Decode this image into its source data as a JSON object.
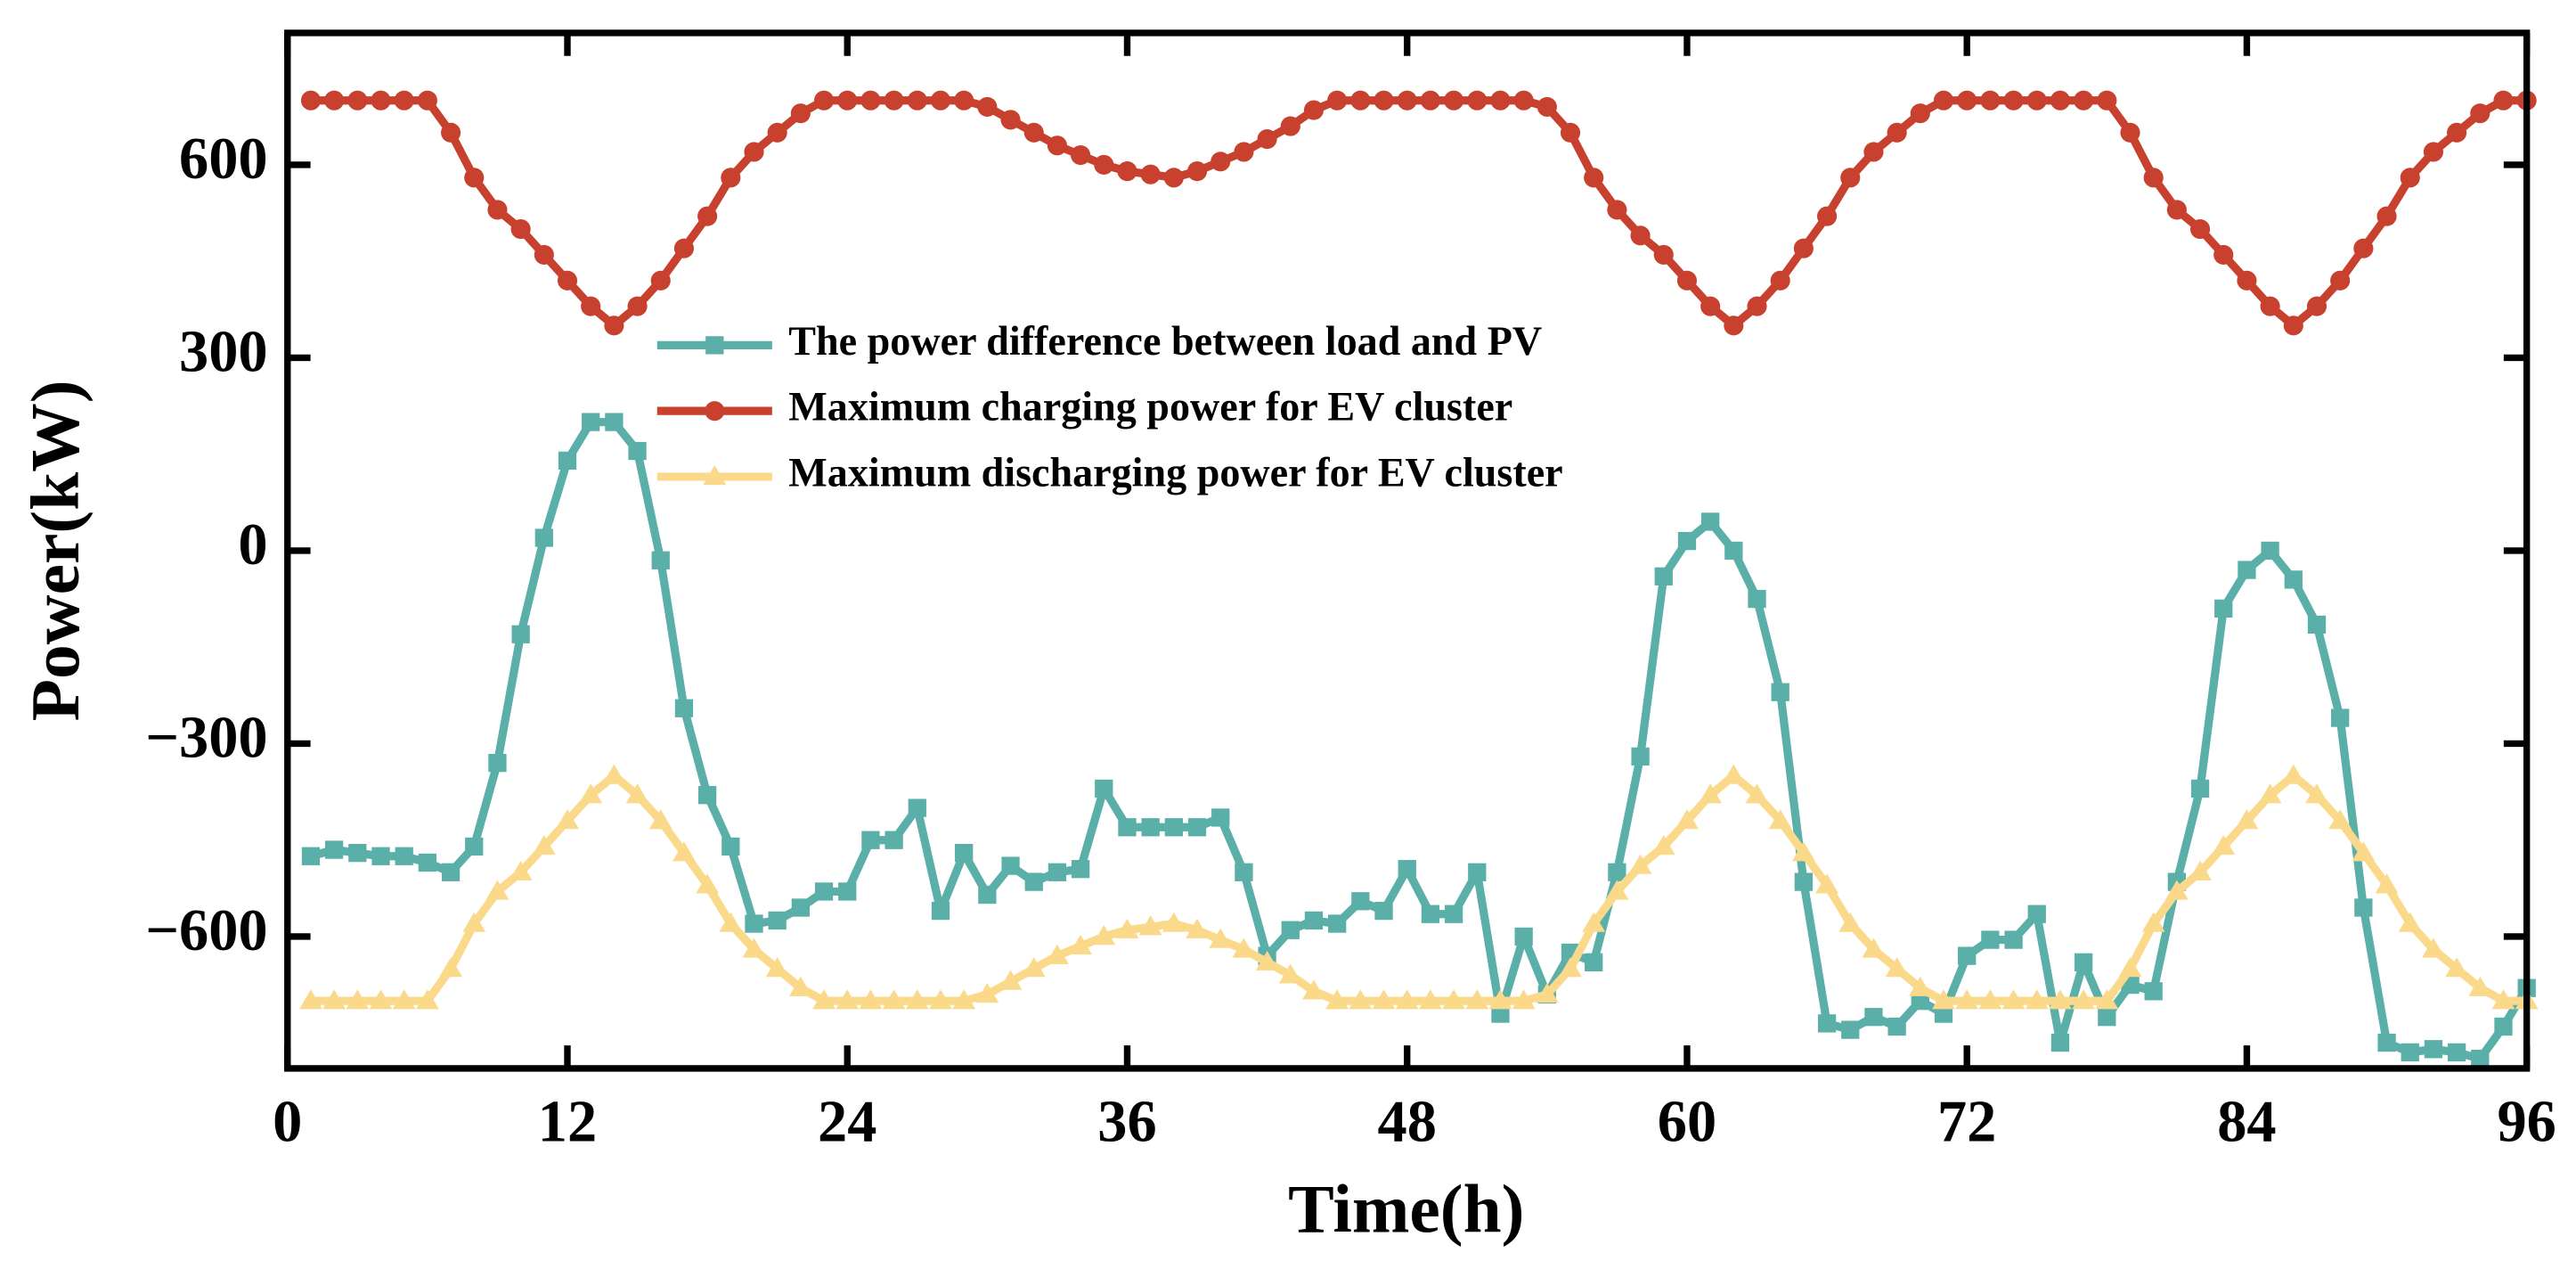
{
  "chart_data": {
    "type": "line",
    "xlabel": "Time(h)",
    "ylabel": "Power(kW)",
    "x": [
      1,
      2,
      3,
      4,
      5,
      6,
      7,
      8,
      9,
      10,
      11,
      12,
      13,
      14,
      15,
      16,
      17,
      18,
      19,
      20,
      21,
      22,
      23,
      24,
      25,
      26,
      27,
      28,
      29,
      30,
      31,
      32,
      33,
      34,
      35,
      36,
      37,
      38,
      39,
      40,
      41,
      42,
      43,
      44,
      45,
      46,
      47,
      48,
      49,
      50,
      51,
      52,
      53,
      54,
      55,
      56,
      57,
      58,
      59,
      60,
      61,
      62,
      63,
      64,
      65,
      66,
      67,
      68,
      69,
      70,
      71,
      72,
      73,
      74,
      75,
      76,
      77,
      78,
      79,
      80,
      81,
      82,
      83,
      84,
      85,
      86,
      87,
      88,
      89,
      90,
      91,
      92,
      93,
      94,
      95,
      96
    ],
    "series": [
      {
        "name": "The power difference between load and PV",
        "color": "#5aafa8",
        "marker": "square",
        "values": [
          -475,
          -465,
          -470,
          -475,
          -475,
          -485,
          -500,
          -460,
          -330,
          -130,
          20,
          140,
          200,
          200,
          155,
          -15,
          -245,
          -380,
          -460,
          -580,
          -575,
          -555,
          -530,
          -530,
          -450,
          -450,
          -400,
          -560,
          -470,
          -535,
          -490,
          -515,
          -500,
          -495,
          -370,
          -430,
          -430,
          -430,
          -430,
          -415,
          -500,
          -630,
          -590,
          -575,
          -580,
          -545,
          -560,
          -495,
          -565,
          -565,
          -500,
          -720,
          -600,
          -690,
          -625,
          -640,
          -500,
          -320,
          -40,
          15,
          45,
          0,
          -75,
          -220,
          -515,
          -735,
          -745,
          -725,
          -740,
          -700,
          -720,
          -630,
          -605,
          -605,
          -565,
          -765,
          -640,
          -725,
          -675,
          -685,
          -515,
          -370,
          -90,
          -30,
          0,
          -45,
          -115,
          -260,
          -555,
          -765,
          -780,
          -775,
          -780,
          -790,
          -740,
          -680
        ]
      },
      {
        "name": "Maximum charging power for EV cluster",
        "color": "#c8412f",
        "marker": "circle",
        "values": [
          700,
          700,
          700,
          700,
          700,
          700,
          650,
          580,
          530,
          500,
          460,
          420,
          380,
          350,
          380,
          420,
          470,
          520,
          580,
          620,
          650,
          680,
          700,
          700,
          700,
          700,
          700,
          700,
          700,
          690,
          670,
          650,
          630,
          615,
          600,
          590,
          585,
          580,
          590,
          605,
          620,
          640,
          660,
          685,
          700,
          700,
          700,
          700,
          700,
          700,
          700,
          700,
          700,
          690,
          650,
          580,
          530,
          490,
          460,
          420,
          380,
          350,
          380,
          420,
          470,
          520,
          580,
          620,
          650,
          680,
          700,
          700,
          700,
          700,
          700,
          700,
          700,
          700,
          650,
          580,
          530,
          500,
          460,
          420,
          380,
          350,
          380,
          420,
          470,
          520,
          580,
          620,
          650,
          680,
          700,
          700
        ]
      },
      {
        "name": "Maximum discharging power for EV cluster",
        "color": "#fbd98a",
        "marker": "triangle",
        "values": [
          -700,
          -700,
          -700,
          -700,
          -700,
          -700,
          -650,
          -580,
          -530,
          -500,
          -460,
          -420,
          -380,
          -350,
          -380,
          -420,
          -470,
          -520,
          -580,
          -620,
          -650,
          -680,
          -700,
          -700,
          -700,
          -700,
          -700,
          -700,
          -700,
          -690,
          -670,
          -650,
          -630,
          -615,
          -600,
          -590,
          -585,
          -580,
          -590,
          -605,
          -620,
          -640,
          -660,
          -685,
          -700,
          -700,
          -700,
          -700,
          -700,
          -700,
          -700,
          -700,
          -700,
          -690,
          -650,
          -580,
          -530,
          -490,
          -460,
          -420,
          -380,
          -350,
          -380,
          -420,
          -470,
          -520,
          -580,
          -620,
          -650,
          -680,
          -700,
          -700,
          -700,
          -700,
          -700,
          -700,
          -700,
          -700,
          -650,
          -580,
          -530,
          -500,
          -460,
          -420,
          -380,
          -350,
          -380,
          -420,
          -470,
          -520,
          -580,
          -620,
          -650,
          -680,
          -700,
          -700
        ]
      }
    ],
    "xlim": [
      0,
      96
    ],
    "xticks": [
      0,
      12,
      24,
      36,
      48,
      60,
      72,
      84,
      96
    ],
    "ylim": [
      -805,
      805
    ],
    "yticks": [
      {
        "value": -600,
        "label": "−600"
      },
      {
        "value": -300,
        "label": "−300"
      },
      0,
      300,
      600
    ],
    "legend": "upper center"
  }
}
